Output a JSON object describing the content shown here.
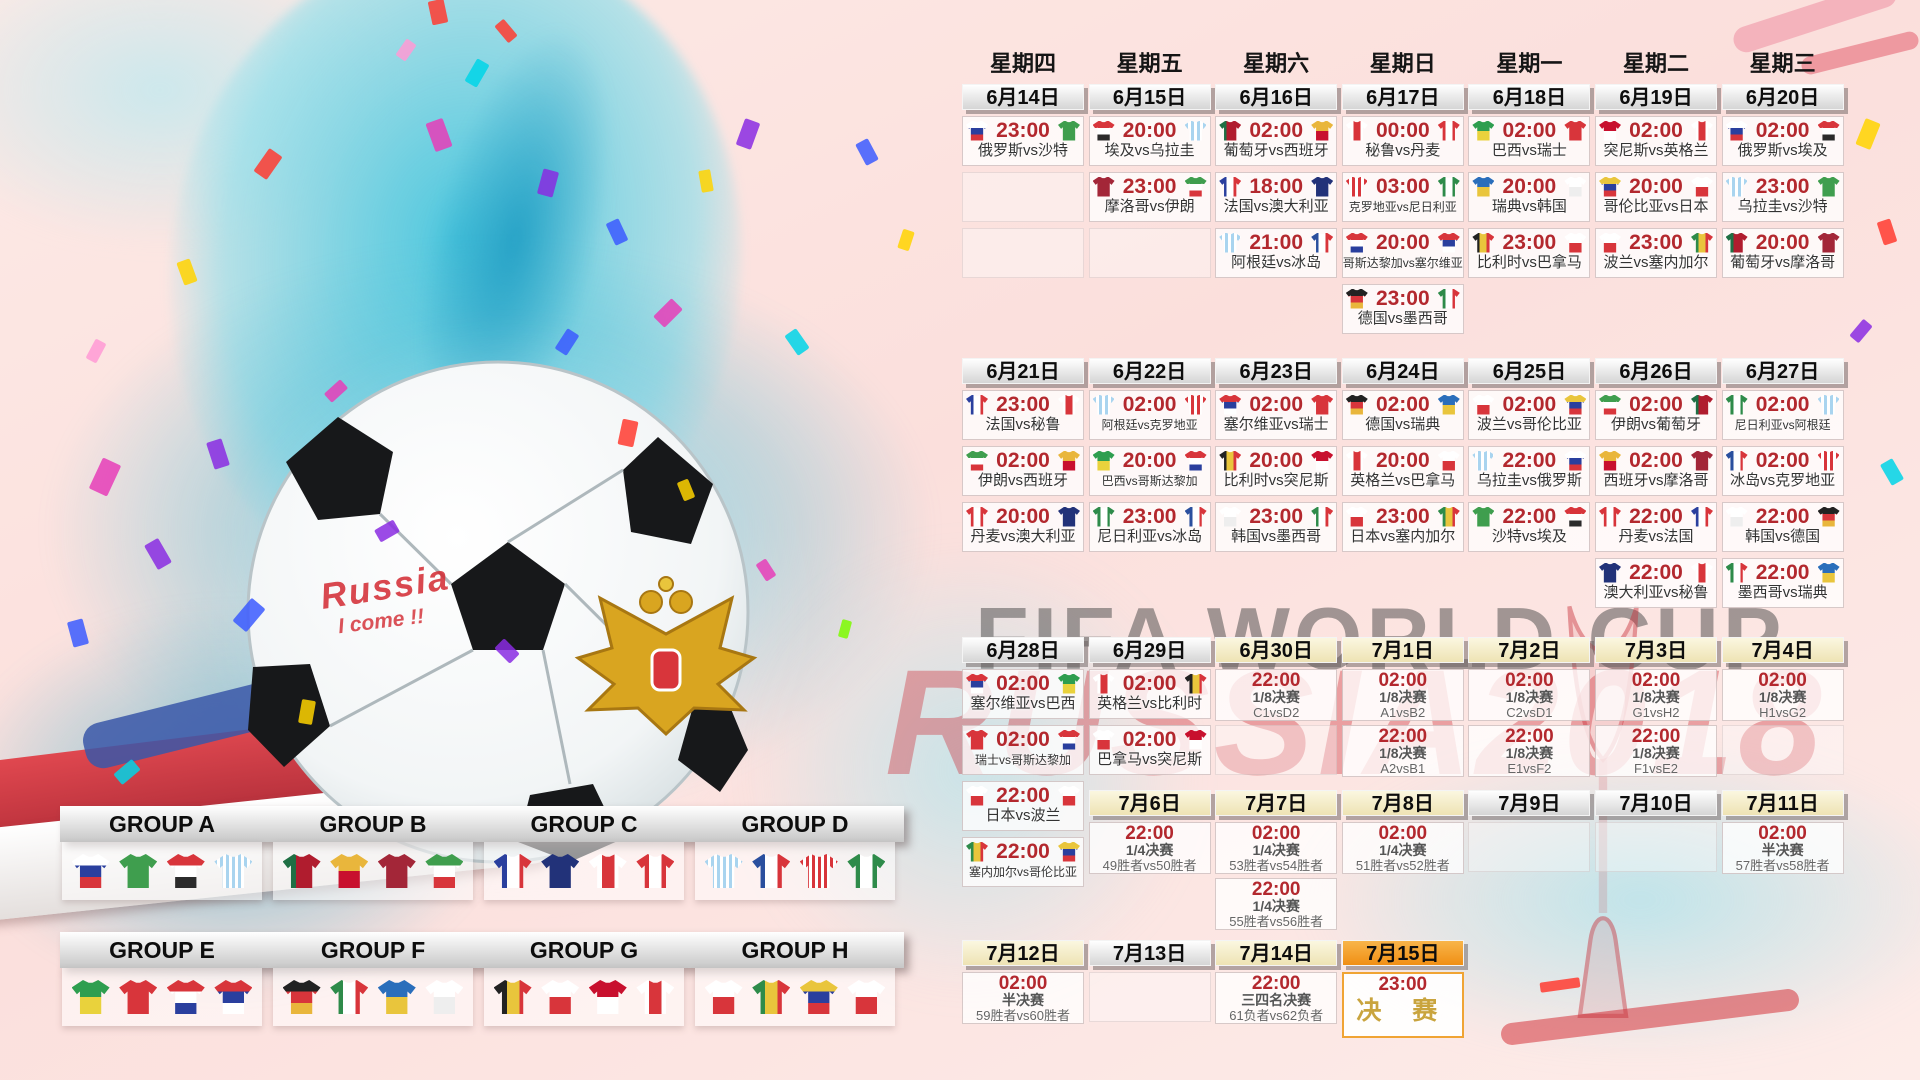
{
  "poster": {
    "watermark_top": "FIFA WORLD CUP",
    "watermark_main": "RUSSIA2018",
    "ball_graffiti_line1": "Russia",
    "ball_graffiti_line2": "I come !!"
  },
  "colors": {
    "time_red": "#b3282e",
    "header_cream": "#f3ecc8",
    "final_orange": "#f0a434",
    "splash_teal": "#44c6de"
  },
  "calendar": {
    "weekdays": [
      "星期四",
      "星期五",
      "星期六",
      "星期日",
      "星期一",
      "星期二",
      "星期三"
    ],
    "weeks": [
      {
        "columns": [
          {
            "date": "6月14日",
            "hl": "n",
            "slots": [
              {
                "t": "23:00",
                "m": "俄罗斯vs沙特"
              },
              {
                "e": true
              },
              {
                "e": true
              },
              null
            ]
          },
          {
            "date": "6月15日",
            "hl": "n",
            "slots": [
              {
                "t": "20:00",
                "m": "埃及vs乌拉圭"
              },
              {
                "t": "23:00",
                "m": "摩洛哥vs伊朗"
              },
              {
                "e": true
              },
              null
            ]
          },
          {
            "date": "6月16日",
            "hl": "n",
            "slots": [
              {
                "t": "02:00",
                "m": "葡萄牙vs西班牙"
              },
              {
                "t": "18:00",
                "m": "法国vs澳大利亚"
              },
              {
                "t": "21:00",
                "m": "阿根廷vs冰岛"
              },
              null
            ]
          },
          {
            "date": "6月17日",
            "hl": "n",
            "slots": [
              {
                "t": "00:00",
                "m": "秘鲁vs丹麦"
              },
              {
                "t": "03:00",
                "m": "克罗地亚vs尼日利亚"
              },
              {
                "t": "20:00",
                "m": "哥斯达黎加vs塞尔维亚"
              },
              {
                "t": "23:00",
                "m": "德国vs墨西哥"
              }
            ]
          },
          {
            "date": "6月18日",
            "hl": "n",
            "slots": [
              {
                "t": "02:00",
                "m": "巴西vs瑞士"
              },
              {
                "t": "20:00",
                "m": "瑞典vs韩国"
              },
              {
                "t": "23:00",
                "m": "比利时vs巴拿马"
              },
              null
            ]
          },
          {
            "date": "6月19日",
            "hl": "n",
            "slots": [
              {
                "t": "02:00",
                "m": "突尼斯vs英格兰"
              },
              {
                "t": "20:00",
                "m": "哥伦比亚vs日本"
              },
              {
                "t": "23:00",
                "m": "波兰vs塞内加尔"
              },
              null
            ]
          },
          {
            "date": "6月20日",
            "hl": "n",
            "slots": [
              {
                "t": "02:00",
                "m": "俄罗斯vs埃及"
              },
              {
                "t": "23:00",
                "m": "乌拉圭vs沙特"
              },
              {
                "t": "20:00",
                "m": "葡萄牙vs摩洛哥"
              },
              null
            ]
          }
        ]
      },
      {
        "columns": [
          {
            "date": "6月21日",
            "hl": "n",
            "slots": [
              {
                "t": "23:00",
                "m": "法国vs秘鲁"
              },
              {
                "t": "02:00",
                "m": "伊朗vs西班牙"
              },
              {
                "t": "20:00",
                "m": "丹麦vs澳大利亚"
              },
              null
            ]
          },
          {
            "date": "6月22日",
            "hl": "n",
            "slots": [
              {
                "t": "02:00",
                "m": "阿根廷vs克罗地亚"
              },
              {
                "t": "20:00",
                "m": "巴西vs哥斯达黎加"
              },
              {
                "t": "23:00",
                "m": "尼日利亚vs冰岛"
              },
              null
            ]
          },
          {
            "date": "6月23日",
            "hl": "n",
            "slots": [
              {
                "t": "02:00",
                "m": "塞尔维亚vs瑞士"
              },
              {
                "t": "20:00",
                "m": "比利时vs突尼斯"
              },
              {
                "t": "23:00",
                "m": "韩国vs墨西哥"
              },
              null
            ]
          },
          {
            "date": "6月24日",
            "hl": "n",
            "slots": [
              {
                "t": "02:00",
                "m": "德国vs瑞典"
              },
              {
                "t": "20:00",
                "m": "英格兰vs巴拿马"
              },
              {
                "t": "23:00",
                "m": "日本vs塞内加尔"
              },
              null
            ]
          },
          {
            "date": "6月25日",
            "hl": "n",
            "slots": [
              {
                "t": "02:00",
                "m": "波兰vs哥伦比亚"
              },
              {
                "t": "22:00",
                "m": "乌拉圭vs俄罗斯"
              },
              {
                "t": "22:00",
                "m": "沙特vs埃及"
              },
              null
            ]
          },
          {
            "date": "6月26日",
            "hl": "n",
            "slots": [
              {
                "t": "02:00",
                "m": "伊朗vs葡萄牙"
              },
              {
                "t": "02:00",
                "m": "西班牙vs摩洛哥"
              },
              {
                "t": "22:00",
                "m": "丹麦vs法国"
              },
              {
                "t": "22:00",
                "m": "澳大利亚vs秘鲁"
              }
            ]
          },
          {
            "date": "6月27日",
            "hl": "n",
            "slots": [
              {
                "t": "02:00",
                "m": "尼日利亚vs阿根廷"
              },
              {
                "t": "02:00",
                "m": "冰岛vs克罗地亚"
              },
              {
                "t": "22:00",
                "m": "韩国vs德国"
              },
              {
                "t": "22:00",
                "m": "墨西哥vs瑞典"
              }
            ]
          }
        ]
      },
      {
        "columns": [
          {
            "date": "6月28日",
            "hl": "n",
            "slots": [
              {
                "t": "02:00",
                "m": "塞尔维亚vs巴西"
              },
              {
                "t": "02:00",
                "m": "瑞士vs哥斯达黎加"
              },
              {
                "t": "22:00",
                "m": "日本vs波兰"
              },
              {
                "t": "22:00",
                "m": "塞内加尔vs哥伦比亚"
              }
            ]
          },
          {
            "date": "6月29日",
            "hl": "n",
            "slots": [
              {
                "t": "02:00",
                "m": "英格兰vs比利时"
              },
              {
                "t": "02:00",
                "m": "巴拿马vs突尼斯"
              },
              null,
              null
            ]
          },
          {
            "date": "6月30日",
            "hl": "c",
            "slots": [
              {
                "t": "22:00",
                "s": "1/8决赛",
                "m": "C1vsD2"
              },
              {
                "e": true
              },
              null,
              null
            ]
          },
          {
            "date": "7月1日",
            "hl": "c",
            "slots": [
              {
                "t": "02:00",
                "s": "1/8决赛",
                "m": "A1vsB2"
              },
              {
                "t": "22:00",
                "s": "1/8决赛",
                "m": "A2vsB1"
              },
              null,
              null
            ]
          },
          {
            "date": "7月2日",
            "hl": "c",
            "slots": [
              {
                "t": "02:00",
                "s": "1/8决赛",
                "m": "C2vsD1"
              },
              {
                "t": "22:00",
                "s": "1/8决赛",
                "m": "E1vsF2"
              },
              null,
              null
            ]
          },
          {
            "date": "7月3日",
            "hl": "c",
            "slots": [
              {
                "t": "02:00",
                "s": "1/8决赛",
                "m": "G1vsH2"
              },
              {
                "t": "22:00",
                "s": "1/8决赛",
                "m": "F1vsE2"
              },
              null,
              null
            ]
          },
          {
            "date": "7月4日",
            "hl": "c",
            "slots": [
              {
                "t": "02:00",
                "s": "1/8决赛",
                "m": "H1vsG2"
              },
              {
                "e": true
              },
              null,
              null
            ]
          }
        ]
      },
      {
        "columns": [
          null,
          {
            "date": "7月6日",
            "hl": "c",
            "slots": [
              {
                "t": "22:00",
                "s": "1/4决赛",
                "m": "49胜者vs50胜者"
              },
              null
            ]
          },
          {
            "date": "7月7日",
            "hl": "c",
            "slots": [
              {
                "t": "02:00",
                "s": "1/4决赛",
                "m": "53胜者vs54胜者"
              },
              {
                "t": "22:00",
                "s": "1/4决赛",
                "m": "55胜者vs56胜者"
              }
            ]
          },
          {
            "date": "7月8日",
            "hl": "c",
            "slots": [
              {
                "t": "02:00",
                "s": "1/4决赛",
                "m": "51胜者vs52胜者"
              },
              null
            ]
          },
          {
            "date": "7月9日",
            "hl": "n",
            "slots": [
              {
                "e": true
              },
              null
            ]
          },
          {
            "date": "7月10日",
            "hl": "n",
            "slots": [
              {
                "e": true
              },
              null
            ]
          },
          {
            "date": "7月11日",
            "hl": "c",
            "slots": [
              {
                "t": "02:00",
                "s": "半决赛",
                "m": "57胜者vs58胜者"
              },
              null
            ]
          }
        ]
      },
      {
        "columns": [
          {
            "date": "7月12日",
            "hl": "c",
            "slots": [
              {
                "t": "02:00",
                "s": "半决赛",
                "m": "59胜者vs60胜者"
              }
            ]
          },
          {
            "date": "7月13日",
            "hl": "n",
            "slots": [
              {
                "e": true
              }
            ]
          },
          {
            "date": "7月14日",
            "hl": "c",
            "slots": [
              {
                "t": "22:00",
                "s": "三四名决赛",
                "m": "61负者vs62负者"
              }
            ]
          },
          {
            "date": "7月15日",
            "hl": "o",
            "slots": [
              {
                "t": "23:00",
                "m": "决 赛",
                "f": true
              }
            ]
          },
          null,
          null,
          null
        ]
      }
    ]
  },
  "groups": [
    {
      "name": "GROUP A",
      "teams": [
        "俄罗斯",
        "沙特",
        "埃及",
        "乌拉圭"
      ]
    },
    {
      "name": "GROUP B",
      "teams": [
        "葡萄牙",
        "西班牙",
        "摩洛哥",
        "伊朗"
      ]
    },
    {
      "name": "GROUP C",
      "teams": [
        "法国",
        "澳大利亚",
        "秘鲁",
        "丹麦"
      ]
    },
    {
      "name": "GROUP D",
      "teams": [
        "阿根廷",
        "冰岛",
        "克罗地亚",
        "尼日利亚"
      ]
    },
    {
      "name": "GROUP E",
      "teams": [
        "巴西",
        "瑞士",
        "哥斯达黎加",
        "塞尔维亚"
      ]
    },
    {
      "name": "GROUP F",
      "teams": [
        "德国",
        "墨西哥",
        "瑞典",
        "韩国"
      ]
    },
    {
      "name": "GROUP G",
      "teams": [
        "比利时",
        "巴拿马",
        "突尼斯",
        "英格兰"
      ]
    },
    {
      "name": "GROUP H",
      "teams": [
        "波兰",
        "塞内加尔",
        "哥伦比亚",
        "日本"
      ]
    }
  ],
  "jerseys": {
    "俄罗斯": {
      "c": [
        "#ffffff",
        "#2a3f9e",
        "#d8353b"
      ],
      "dir": "h"
    },
    "沙特": {
      "c": [
        "#3f9e4e"
      ]
    },
    "埃及": {
      "c": [
        "#d8353b",
        "#ffffff",
        "#2b2b2b"
      ],
      "dir": "h"
    },
    "乌拉圭": {
      "c": [
        "#a9d4ef",
        "#ffffff"
      ],
      "dir": "s"
    },
    "摩洛哥": {
      "c": [
        "#a32638"
      ]
    },
    "伊朗": {
      "c": [
        "#3f9e4e",
        "#ffffff",
        "#d8353b"
      ],
      "dir": "h"
    },
    "葡萄牙": {
      "c": [
        "#1f6f44",
        "#b01c2e",
        "#b01c2e"
      ],
      "dir": "v"
    },
    "西班牙": {
      "c": [
        "#e9b63c",
        "#c8102e"
      ],
      "dir": "h"
    },
    "法国": {
      "c": [
        "#2a3f9e",
        "#ffffff",
        "#d8353b"
      ],
      "dir": "v"
    },
    "澳大利亚": {
      "c": [
        "#223279"
      ]
    },
    "阿根廷": {
      "c": [
        "#a9d4ef",
        "#ffffff"
      ],
      "dir": "s"
    },
    "冰岛": {
      "c": [
        "#2a4f9e",
        "#ffffff",
        "#d8353b"
      ],
      "dir": "v"
    },
    "秘鲁": {
      "c": [
        "#ffffff",
        "#d8353b",
        "#ffffff"
      ],
      "dir": "v"
    },
    "丹麦": {
      "c": [
        "#d8353b",
        "#ffffff",
        "#d8353b"
      ],
      "dir": "v"
    },
    "克罗地亚": {
      "c": [
        "#d8353b",
        "#ffffff"
      ],
      "dir": "s"
    },
    "尼日利亚": {
      "c": [
        "#2e8b4a",
        "#ffffff",
        "#2e8b4a"
      ],
      "dir": "v"
    },
    "哥斯达黎加": {
      "c": [
        "#d8353b",
        "#ffffff",
        "#2a3f9e"
      ],
      "dir": "h"
    },
    "塞尔维亚": {
      "c": [
        "#d8353b",
        "#2a3f9e",
        "#ffffff"
      ],
      "dir": "h"
    },
    "德国": {
      "c": [
        "#222222",
        "#d8353b",
        "#e9b63c"
      ],
      "dir": "h"
    },
    "墨西哥": {
      "c": [
        "#2e8b4a",
        "#ffffff",
        "#d8353b"
      ],
      "dir": "v"
    },
    "巴西": {
      "c": [
        "#2e9e4f",
        "#e9d23c"
      ],
      "dir": "h"
    },
    "瑞士": {
      "c": [
        "#d8353b"
      ]
    },
    "瑞典": {
      "c": [
        "#2a6ebb",
        "#e9c53c"
      ],
      "dir": "h"
    },
    "韩国": {
      "c": [
        "#ffffff",
        "#eeeeee"
      ],
      "dir": "h"
    },
    "比利时": {
      "c": [
        "#222222",
        "#e9c53c",
        "#d8353b"
      ],
      "dir": "v"
    },
    "巴拿马": {
      "c": [
        "#ffffff",
        "#d8353b"
      ],
      "dir": "h"
    },
    "突尼斯": {
      "c": [
        "#c8102e",
        "#ffffff"
      ],
      "dir": "h"
    },
    "英格兰": {
      "c": [
        "#ffffff",
        "#d8353b",
        "#ffffff"
      ],
      "dir": "v"
    },
    "哥伦比亚": {
      "c": [
        "#e9c53c",
        "#2a3f9e",
        "#d8353b"
      ],
      "dir": "h"
    },
    "日本": {
      "c": [
        "#ffffff",
        "#d8353b"
      ],
      "dir": "h"
    },
    "波兰": {
      "c": [
        "#ffffff",
        "#d8353b"
      ],
      "dir": "h"
    },
    "塞内加尔": {
      "c": [
        "#2e8b4a",
        "#e9c53c",
        "#d8353b"
      ],
      "dir": "v"
    }
  }
}
